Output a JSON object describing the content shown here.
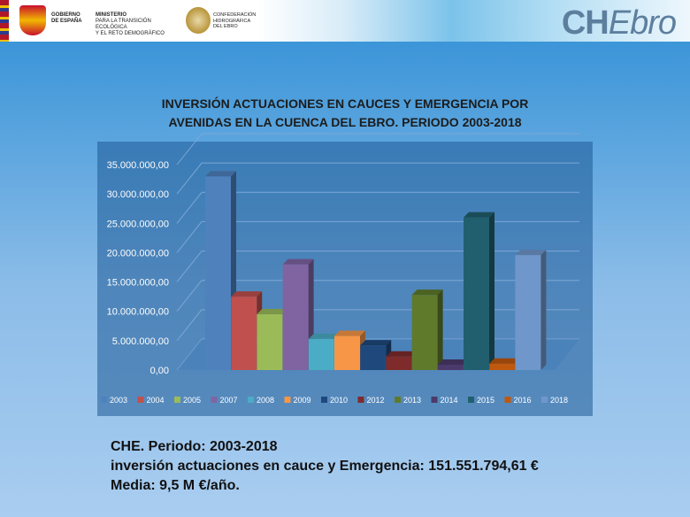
{
  "header": {
    "gov_label_1": "GOBIERNO",
    "gov_label_2": "DE ESPAÑA",
    "ministry_1": "MINISTERIO",
    "ministry_2": "PARA LA TRANSICIÓN ECOLÓGICA",
    "ministry_3": "Y EL RETO DEMOGRÁFICO",
    "conf_1": "CONFEDERACIÓN",
    "conf_2": "HIDROGRÁFICA",
    "conf_3": "DEL EBRO",
    "logo_ch": "CH",
    "logo_ebro": "Ebro"
  },
  "chart_data": {
    "type": "bar",
    "title_line1": "INVERSIÓN ACTUACIONES EN CAUCES Y EMERGENCIA POR",
    "title_line2": "AVENIDAS EN LA CUENCA DEL EBRO. PERIODO 2003-2018",
    "categories": [
      "2003",
      "2004",
      "2005",
      "2007",
      "2008",
      "2009",
      "2010",
      "2012",
      "2013",
      "2014",
      "2015",
      "2016",
      "2018"
    ],
    "values": [
      33000000,
      12500000,
      9500000,
      18000000,
      5300000,
      5800000,
      4200000,
      2300000,
      12800000,
      900000,
      26000000,
      1100000,
      19600000
    ],
    "colors": [
      "#4f81bd",
      "#c0504d",
      "#9bbb59",
      "#8064a2",
      "#4bacc6",
      "#f79646",
      "#1f497d",
      "#7f2b2b",
      "#5f7a2b",
      "#4b3a6b",
      "#215f6e",
      "#c0580e",
      "#6f97cc"
    ],
    "y_ticks": [
      "0,00",
      "5.000.000,00",
      "10.000.000,00",
      "15.000.000,00",
      "20.000.000,00",
      "25.000.000,00",
      "30.000.000,00",
      "35.000.000,00"
    ],
    "ylim": [
      0,
      35000000
    ],
    "legend_position": "bottom",
    "grid": true,
    "background": "#1e5a96"
  },
  "summary": {
    "line1": "CHE. Periodo: 2003-2018",
    "line2": "inversión actuaciones en cauce y Emergencia: 151.551.794,61 €",
    "line3": "Media: 9,5 M €/año."
  }
}
